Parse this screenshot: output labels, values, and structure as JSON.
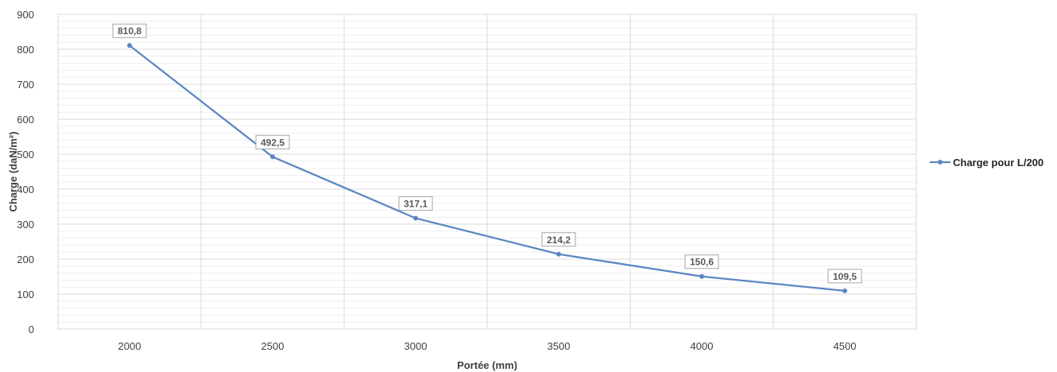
{
  "chart_data": {
    "type": "line",
    "title": "",
    "xlabel": "Portée (mm)",
    "ylabel": "Charge (daN/m²)",
    "ylim": [
      0,
      900
    ],
    "yticks": [
      0,
      100,
      200,
      300,
      400,
      500,
      600,
      700,
      800,
      900
    ],
    "xlim": [
      1750,
      4750
    ],
    "xticks": [
      2000,
      2500,
      3000,
      3500,
      4000,
      4500
    ],
    "grid": "major and minor",
    "legend_position": "right",
    "series": [
      {
        "name": "Charge pour L/200",
        "color": "#5b87c2",
        "x": [
          2000,
          2500,
          3000,
          3500,
          4000,
          4500
        ],
        "values": [
          810.8,
          492.5,
          317.1,
          214.2,
          150.6,
          109.5
        ],
        "labels": [
          "810,8",
          "492,5",
          "317,1",
          "214,2",
          "150,6",
          "109,5"
        ]
      }
    ]
  }
}
